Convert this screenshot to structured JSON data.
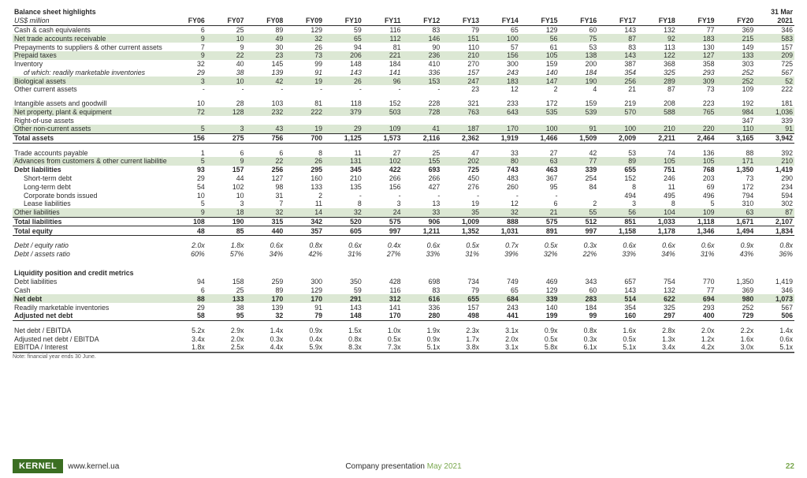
{
  "title": "Balance sheet highlights",
  "subtitle": "US$ million",
  "years": [
    "FY06",
    "FY07",
    "FY08",
    "FY09",
    "FY10",
    "FY11",
    "FY12",
    "FY13",
    "FY14",
    "FY15",
    "FY16",
    "FY17",
    "FY18",
    "FY19",
    "FY20"
  ],
  "last_col_header": [
    "31 Mar",
    "2021"
  ],
  "rows": [
    {
      "label": "Cash & cash equivalents",
      "v": [
        "6",
        "25",
        "89",
        "129",
        "59",
        "116",
        "83",
        "79",
        "65",
        "129",
        "60",
        "143",
        "132",
        "77",
        "369",
        "346"
      ]
    },
    {
      "label": "Net trade accounts receivable",
      "hl": true,
      "v": [
        "9",
        "10",
        "49",
        "32",
        "65",
        "112",
        "146",
        "151",
        "100",
        "56",
        "75",
        "87",
        "92",
        "183",
        "215",
        "583"
      ]
    },
    {
      "label": "Prepayments to suppliers & other current assets",
      "v": [
        "7",
        "9",
        "30",
        "26",
        "94",
        "81",
        "90",
        "110",
        "57",
        "61",
        "53",
        "83",
        "113",
        "130",
        "149",
        "157"
      ]
    },
    {
      "label": "Prepaid taxes",
      "hl": true,
      "v": [
        "9",
        "22",
        "23",
        "73",
        "206",
        "221",
        "236",
        "210",
        "156",
        "105",
        "138",
        "143",
        "122",
        "127",
        "133",
        "209"
      ]
    },
    {
      "label": "Inventory",
      "v": [
        "32",
        "40",
        "145",
        "99",
        "148",
        "184",
        "410",
        "270",
        "300",
        "159",
        "200",
        "387",
        "368",
        "358",
        "303",
        "725"
      ]
    },
    {
      "label": "of which: readily marketable inventories",
      "italic": true,
      "indent": true,
      "v": [
        "29",
        "38",
        "139",
        "91",
        "143",
        "141",
        "336",
        "157",
        "243",
        "140",
        "184",
        "354",
        "325",
        "293",
        "252",
        "567"
      ]
    },
    {
      "label": "Biological assets",
      "hl": true,
      "v": [
        "3",
        "10",
        "42",
        "19",
        "26",
        "96",
        "153",
        "247",
        "183",
        "147",
        "190",
        "256",
        "289",
        "309",
        "252",
        "52"
      ]
    },
    {
      "label": "Other current assets",
      "v": [
        "-",
        "-",
        "-",
        "-",
        "-",
        "-",
        "-",
        "23",
        "12",
        "2",
        "4",
        "21",
        "87",
        "73",
        "109",
        "222"
      ]
    },
    {
      "spacer": true
    },
    {
      "label": "Intangible assets and goodwill",
      "v": [
        "10",
        "28",
        "103",
        "81",
        "118",
        "152",
        "228",
        "321",
        "233",
        "172",
        "159",
        "219",
        "208",
        "223",
        "192",
        "181"
      ]
    },
    {
      "label": "Net property, plant & equipment",
      "hl": true,
      "v": [
        "72",
        "128",
        "232",
        "222",
        "379",
        "503",
        "728",
        "763",
        "643",
        "535",
        "539",
        "570",
        "588",
        "765",
        "984",
        "1,036"
      ]
    },
    {
      "label": "Right-of-use assets",
      "v": [
        "",
        "",
        "",
        "",
        "",
        "",
        "",
        "",
        "",
        "",
        "",
        "",
        "",
        "",
        "347",
        "339"
      ]
    },
    {
      "label": "Other non-current assets",
      "hl": true,
      "v": [
        "5",
        "3",
        "43",
        "19",
        "29",
        "109",
        "41",
        "187",
        "170",
        "100",
        "91",
        "100",
        "210",
        "220",
        "110",
        "91"
      ]
    },
    {
      "label": "Total assets",
      "bold": true,
      "bt": "dbl",
      "bb": "dbl",
      "v": [
        "156",
        "275",
        "756",
        "700",
        "1,125",
        "1,573",
        "2,116",
        "2,362",
        "1,919",
        "1,466",
        "1,509",
        "2,009",
        "2,211",
        "2,464",
        "3,165",
        "3,942"
      ]
    },
    {
      "spacer": true
    },
    {
      "label": "Trade accounts payable",
      "v": [
        "1",
        "6",
        "6",
        "8",
        "11",
        "27",
        "25",
        "47",
        "33",
        "27",
        "42",
        "53",
        "74",
        "136",
        "88",
        "392"
      ]
    },
    {
      "label": "Advances from customers & other current liabilities",
      "hl": true,
      "v": [
        "5",
        "9",
        "22",
        "26",
        "131",
        "102",
        "155",
        "202",
        "80",
        "63",
        "77",
        "89",
        "105",
        "105",
        "171",
        "210"
      ]
    },
    {
      "label": "Debt liabilities",
      "bold": true,
      "v": [
        "93",
        "157",
        "256",
        "295",
        "345",
        "422",
        "693",
        "725",
        "743",
        "463",
        "339",
        "655",
        "751",
        "768",
        "1,350",
        "1,419"
      ]
    },
    {
      "label": "Short-term debt",
      "indent": true,
      "v": [
        "29",
        "44",
        "127",
        "160",
        "210",
        "266",
        "266",
        "450",
        "483",
        "367",
        "254",
        "152",
        "246",
        "203",
        "73",
        "290"
      ]
    },
    {
      "label": "Long-term debt",
      "indent": true,
      "v": [
        "54",
        "102",
        "98",
        "133",
        "135",
        "156",
        "427",
        "276",
        "260",
        "95",
        "84",
        "8",
        "11",
        "69",
        "172",
        "234"
      ]
    },
    {
      "label": "Corporate bonds issued",
      "indent": true,
      "v": [
        "10",
        "10",
        "31",
        "2",
        "-",
        "-",
        "-",
        "-",
        "-",
        "-",
        "",
        "494",
        "495",
        "496",
        "794",
        "594"
      ]
    },
    {
      "label": "Lease liabilities",
      "indent": true,
      "v": [
        "5",
        "3",
        "7",
        "11",
        "8",
        "3",
        "13",
        "19",
        "12",
        "6",
        "2",
        "3",
        "8",
        "5",
        "310",
        "302"
      ]
    },
    {
      "label": "Other liabilities",
      "hl": true,
      "v": [
        "9",
        "18",
        "32",
        "14",
        "32",
        "24",
        "33",
        "35",
        "32",
        "21",
        "55",
        "56",
        "104",
        "109",
        "63",
        "87"
      ]
    },
    {
      "label": "Total liabilities",
      "bold": true,
      "bt": "s",
      "v": [
        "108",
        "190",
        "315",
        "342",
        "520",
        "575",
        "906",
        "1,009",
        "888",
        "575",
        "512",
        "851",
        "1,033",
        "1,118",
        "1,671",
        "2,107"
      ]
    },
    {
      "label": "Total equity",
      "bold": true,
      "bt": "s",
      "bb": "dbl",
      "v": [
        "48",
        "85",
        "440",
        "357",
        "605",
        "997",
        "1,211",
        "1,352",
        "1,031",
        "891",
        "997",
        "1,158",
        "1,178",
        "1,346",
        "1,494",
        "1,834"
      ]
    },
    {
      "spacer": true
    },
    {
      "label": "Debt / equity ratio",
      "italic": true,
      "v": [
        "2.0x",
        "1.8x",
        "0.6x",
        "0.8x",
        "0.6x",
        "0.4x",
        "0.6x",
        "0.5x",
        "0.7x",
        "0.5x",
        "0.3x",
        "0.6x",
        "0.6x",
        "0.6x",
        "0.9x",
        "0.8x"
      ]
    },
    {
      "label": "Debt / assets ratio",
      "italic": true,
      "v": [
        "60%",
        "57%",
        "34%",
        "42%",
        "31%",
        "27%",
        "33%",
        "31%",
        "39%",
        "32%",
        "22%",
        "33%",
        "34%",
        "31%",
        "43%",
        "36%"
      ]
    },
    {
      "spacer": true
    },
    {
      "spacer": true
    },
    {
      "label": "Liquidity position and credit metrics",
      "section": true
    },
    {
      "label": "Debt liabilities",
      "v": [
        "94",
        "158",
        "259",
        "300",
        "350",
        "428",
        "698",
        "734",
        "749",
        "469",
        "343",
        "657",
        "754",
        "770",
        "1,350",
        "1,419"
      ]
    },
    {
      "label": "Cash",
      "v": [
        "6",
        "25",
        "89",
        "129",
        "59",
        "116",
        "83",
        "79",
        "65",
        "129",
        "60",
        "143",
        "132",
        "77",
        "369",
        "346"
      ]
    },
    {
      "label": "Net debt",
      "bold": true,
      "hl": true,
      "v": [
        "88",
        "133",
        "170",
        "170",
        "291",
        "312",
        "616",
        "655",
        "684",
        "339",
        "283",
        "514",
        "622",
        "694",
        "980",
        "1,073"
      ]
    },
    {
      "label": "Readily marketable inventories",
      "v": [
        "29",
        "38",
        "139",
        "91",
        "143",
        "141",
        "336",
        "157",
        "243",
        "140",
        "184",
        "354",
        "325",
        "293",
        "252",
        "567"
      ]
    },
    {
      "label": "Adjusted net debt",
      "bold": true,
      "bb": "s",
      "v": [
        "58",
        "95",
        "32",
        "79",
        "148",
        "170",
        "280",
        "498",
        "441",
        "199",
        "99",
        "160",
        "297",
        "400",
        "729",
        "506"
      ]
    },
    {
      "spacer": true
    },
    {
      "label": "Net debt / EBITDA",
      "v": [
        "5.2x",
        "2.9x",
        "1.4x",
        "0.9x",
        "1.5x",
        "1.0x",
        "1.9x",
        "2.3x",
        "3.1x",
        "0.9x",
        "0.8x",
        "1.6x",
        "2.8x",
        "2.0x",
        "2.2x",
        "1.4x"
      ]
    },
    {
      "label": "Adjusted net debt / EBITDA",
      "v": [
        "3.4x",
        "2.0x",
        "0.3x",
        "0.4x",
        "0.8x",
        "0.5x",
        "0.9x",
        "1.7x",
        "2.0x",
        "0.5x",
        "0.3x",
        "0.5x",
        "1.3x",
        "1.2x",
        "1.6x",
        "0.6x"
      ]
    },
    {
      "label": "EBITDA / Interest",
      "bb": "s",
      "v": [
        "1.8x",
        "2.5x",
        "4.4x",
        "5.9x",
        "8.3x",
        "7.3x",
        "5.1x",
        "3.8x",
        "3.1x",
        "5.8x",
        "6.1x",
        "5.1x",
        "3.4x",
        "4.2x",
        "3.0x",
        "5.1x"
      ]
    }
  ],
  "note": "Note: financial year ends 30 June.",
  "footer": {
    "brand": "KERNEL",
    "url": "www.kernel.ua",
    "center_text": "Company presentation",
    "center_date": "May 2021",
    "page": "22"
  },
  "colors": {
    "highlight": "#dce8d4",
    "brand_bg": "#3b6e22",
    "accent_green": "#7aa84f"
  }
}
